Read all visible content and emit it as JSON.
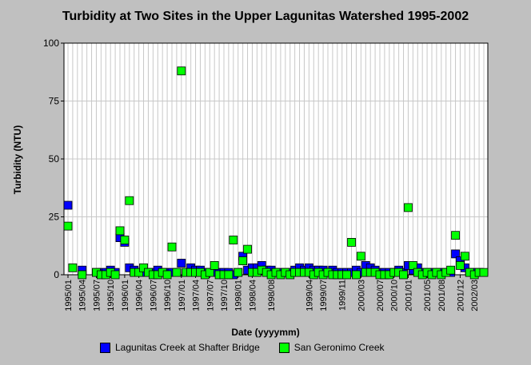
{
  "chart_data": {
    "type": "scatter",
    "title": "Turbidity at Two Sites in the Upper Lagunitas Watershed 1995-2002",
    "xlabel": "Date (yyyymm)",
    "ylabel": "Turbidity (NTU)",
    "ylim": [
      0,
      100
    ],
    "yticks": [
      "0",
      "25",
      "50",
      "75",
      "100"
    ],
    "xlim": [
      "1995-01",
      "2002-05"
    ],
    "xtick_labels": [
      "1995/01",
      "1995/04",
      "1995/07",
      "1995/10",
      "1996/01",
      "1996/04",
      "1996/07",
      "1996/10",
      "1997/01",
      "1997/04",
      "1997/07",
      "1997/10",
      "1998/01",
      "1998/04",
      "1998/08",
      "1999/04",
      "1999/07",
      "1999/11",
      "2000/03",
      "2000/07",
      "2000/10",
      "2001/01",
      "2001/05",
      "2001/08",
      "2001/12",
      "2002/03"
    ],
    "grid": true,
    "legend_position": "bottom",
    "series": [
      {
        "name": "Lagunitas Creek at Shafter Bridge",
        "color": "#0000ff",
        "points": [
          {
            "x": "1995-01",
            "y": 30
          },
          {
            "x": "1995-04",
            "y": 2
          },
          {
            "x": "1995-07",
            "y": 1
          },
          {
            "x": "1995-08",
            "y": 1
          },
          {
            "x": "1995-09",
            "y": 1
          },
          {
            "x": "1995-10",
            "y": 2
          },
          {
            "x": "1995-11",
            "y": 1
          },
          {
            "x": "1995-12",
            "y": 16
          },
          {
            "x": "1996-01",
            "y": 14
          },
          {
            "x": "1996-02",
            "y": 3
          },
          {
            "x": "1996-03",
            "y": 2
          },
          {
            "x": "1996-04",
            "y": 1
          },
          {
            "x": "1996-05",
            "y": 1
          },
          {
            "x": "1996-06",
            "y": 1
          },
          {
            "x": "1996-07",
            "y": 1
          },
          {
            "x": "1996-08",
            "y": 2
          },
          {
            "x": "1996-09",
            "y": 1
          },
          {
            "x": "1996-10",
            "y": 1
          },
          {
            "x": "1996-11",
            "y": 1
          },
          {
            "x": "1996-12",
            "y": 1
          },
          {
            "x": "1997-01",
            "y": 5
          },
          {
            "x": "1997-02",
            "y": 1
          },
          {
            "x": "1997-03",
            "y": 3
          },
          {
            "x": "1997-04",
            "y": 2
          },
          {
            "x": "1997-05",
            "y": 2
          },
          {
            "x": "1997-06",
            "y": 1
          },
          {
            "x": "1997-07",
            "y": 1
          },
          {
            "x": "1997-08",
            "y": 1
          },
          {
            "x": "1997-09",
            "y": 1
          },
          {
            "x": "1997-10",
            "y": 1
          },
          {
            "x": "1997-11",
            "y": 1
          },
          {
            "x": "1997-12",
            "y": 0
          },
          {
            "x": "1998-01",
            "y": 1
          },
          {
            "x": "1998-02",
            "y": 8
          },
          {
            "x": "1998-03",
            "y": 2
          },
          {
            "x": "1998-04",
            "y": 3
          },
          {
            "x": "1998-05",
            "y": 3
          },
          {
            "x": "1998-06",
            "y": 4
          },
          {
            "x": "1998-07",
            "y": 2
          },
          {
            "x": "1998-08",
            "y": 2
          },
          {
            "x": "1998-09",
            "y": 1
          },
          {
            "x": "1998-10",
            "y": 1
          },
          {
            "x": "1998-11",
            "y": 1
          },
          {
            "x": "1998-12",
            "y": 1
          },
          {
            "x": "1999-01",
            "y": 2
          },
          {
            "x": "1999-02",
            "y": 3
          },
          {
            "x": "1999-03",
            "y": 2
          },
          {
            "x": "1999-04",
            "y": 3
          },
          {
            "x": "1999-05",
            "y": 2
          },
          {
            "x": "1999-06",
            "y": 2
          },
          {
            "x": "1999-07",
            "y": 2
          },
          {
            "x": "1999-08",
            "y": 1
          },
          {
            "x": "1999-09",
            "y": 2
          },
          {
            "x": "1999-10",
            "y": 1
          },
          {
            "x": "1999-11",
            "y": 1
          },
          {
            "x": "1999-12",
            "y": 1
          },
          {
            "x": "2000-01",
            "y": 1
          },
          {
            "x": "2000-02",
            "y": 2
          },
          {
            "x": "2000-03",
            "y": 1
          },
          {
            "x": "2000-04",
            "y": 4
          },
          {
            "x": "2000-05",
            "y": 3
          },
          {
            "x": "2000-06",
            "y": 2
          },
          {
            "x": "2000-07",
            "y": 1
          },
          {
            "x": "2000-08",
            "y": 1
          },
          {
            "x": "2000-09",
            "y": 1
          },
          {
            "x": "2000-10",
            "y": 1
          },
          {
            "x": "2000-11",
            "y": 2
          },
          {
            "x": "2000-12",
            "y": 1
          },
          {
            "x": "2001-01",
            "y": 4
          },
          {
            "x": "2001-02",
            "y": 2
          },
          {
            "x": "2001-03",
            "y": 3
          },
          {
            "x": "2001-04",
            "y": 1
          },
          {
            "x": "2001-05",
            "y": 1
          },
          {
            "x": "2001-06",
            "y": 1
          },
          {
            "x": "2001-07",
            "y": 1
          },
          {
            "x": "2001-08",
            "y": 1
          },
          {
            "x": "2001-09",
            "y": 1
          },
          {
            "x": "2001-10",
            "y": 1
          },
          {
            "x": "2001-11",
            "y": 9
          },
          {
            "x": "2001-12",
            "y": 6
          },
          {
            "x": "2002-01",
            "y": 3
          },
          {
            "x": "2002-02",
            "y": 1
          },
          {
            "x": "2002-03",
            "y": 1
          },
          {
            "x": "2002-04",
            "y": 1
          }
        ]
      },
      {
        "name": "San Geronimo Creek",
        "color": "#00ff00",
        "points": [
          {
            "x": "1995-01",
            "y": 21
          },
          {
            "x": "1995-02",
            "y": 3
          },
          {
            "x": "1995-04",
            "y": 0
          },
          {
            "x": "1995-07",
            "y": 1
          },
          {
            "x": "1995-08",
            "y": 0
          },
          {
            "x": "1995-09",
            "y": 0
          },
          {
            "x": "1995-10",
            "y": 1
          },
          {
            "x": "1995-11",
            "y": 0
          },
          {
            "x": "1995-12",
            "y": 19
          },
          {
            "x": "1996-01",
            "y": 15
          },
          {
            "x": "1996-02",
            "y": 32
          },
          {
            "x": "1996-03",
            "y": 1
          },
          {
            "x": "1996-04",
            "y": 1
          },
          {
            "x": "1996-05",
            "y": 3
          },
          {
            "x": "1996-06",
            "y": 1
          },
          {
            "x": "1996-07",
            "y": 0
          },
          {
            "x": "1996-08",
            "y": 0
          },
          {
            "x": "1996-09",
            "y": 1
          },
          {
            "x": "1996-10",
            "y": 0
          },
          {
            "x": "1996-11",
            "y": 12
          },
          {
            "x": "1996-12",
            "y": 1
          },
          {
            "x": "1997-01",
            "y": 88
          },
          {
            "x": "1997-02",
            "y": 1
          },
          {
            "x": "1997-03",
            "y": 1
          },
          {
            "x": "1997-04",
            "y": 1
          },
          {
            "x": "1997-05",
            "y": 1
          },
          {
            "x": "1997-06",
            "y": 0
          },
          {
            "x": "1997-07",
            "y": 1
          },
          {
            "x": "1997-08",
            "y": 4
          },
          {
            "x": "1997-09",
            "y": 0
          },
          {
            "x": "1997-10",
            "y": 0
          },
          {
            "x": "1997-11",
            "y": 0
          },
          {
            "x": "1997-12",
            "y": 15
          },
          {
            "x": "1998-01",
            "y": 1
          },
          {
            "x": "1998-02",
            "y": 6
          },
          {
            "x": "1998-03",
            "y": 11
          },
          {
            "x": "1998-04",
            "y": 1
          },
          {
            "x": "1998-05",
            "y": 1
          },
          {
            "x": "1998-06",
            "y": 2
          },
          {
            "x": "1998-07",
            "y": 1
          },
          {
            "x": "1998-08",
            "y": 0
          },
          {
            "x": "1998-09",
            "y": 1
          },
          {
            "x": "1998-10",
            "y": 0
          },
          {
            "x": "1998-11",
            "y": 1
          },
          {
            "x": "1998-12",
            "y": 0
          },
          {
            "x": "1999-01",
            "y": 1
          },
          {
            "x": "1999-02",
            "y": 1
          },
          {
            "x": "1999-03",
            "y": 1
          },
          {
            "x": "1999-04",
            "y": 1
          },
          {
            "x": "1999-05",
            "y": 0
          },
          {
            "x": "1999-06",
            "y": 1
          },
          {
            "x": "1999-07",
            "y": 0
          },
          {
            "x": "1999-08",
            "y": 1
          },
          {
            "x": "1999-09",
            "y": 0
          },
          {
            "x": "1999-10",
            "y": 0
          },
          {
            "x": "1999-11",
            "y": 0
          },
          {
            "x": "1999-12",
            "y": 0
          },
          {
            "x": "2000-01",
            "y": 14
          },
          {
            "x": "2000-02",
            "y": 0
          },
          {
            "x": "2000-03",
            "y": 8
          },
          {
            "x": "2000-04",
            "y": 1
          },
          {
            "x": "2000-05",
            "y": 1
          },
          {
            "x": "2000-06",
            "y": 1
          },
          {
            "x": "2000-07",
            "y": 0
          },
          {
            "x": "2000-08",
            "y": 0
          },
          {
            "x": "2000-09",
            "y": 0
          },
          {
            "x": "2000-10",
            "y": 1
          },
          {
            "x": "2000-11",
            "y": 1
          },
          {
            "x": "2000-12",
            "y": 0
          },
          {
            "x": "2001-01",
            "y": 29
          },
          {
            "x": "2001-02",
            "y": 4
          },
          {
            "x": "2001-03",
            "y": 1
          },
          {
            "x": "2001-04",
            "y": 0
          },
          {
            "x": "2001-05",
            "y": 1
          },
          {
            "x": "2001-06",
            "y": 0
          },
          {
            "x": "2001-07",
            "y": 1
          },
          {
            "x": "2001-08",
            "y": 0
          },
          {
            "x": "2001-09",
            "y": 1
          },
          {
            "x": "2001-10",
            "y": 2
          },
          {
            "x": "2001-11",
            "y": 17
          },
          {
            "x": "2001-12",
            "y": 4
          },
          {
            "x": "2002-01",
            "y": 8
          },
          {
            "x": "2002-02",
            "y": 1
          },
          {
            "x": "2002-03",
            "y": 0
          },
          {
            "x": "2002-04",
            "y": 1
          },
          {
            "x": "2002-05",
            "y": 1
          }
        ]
      }
    ]
  }
}
